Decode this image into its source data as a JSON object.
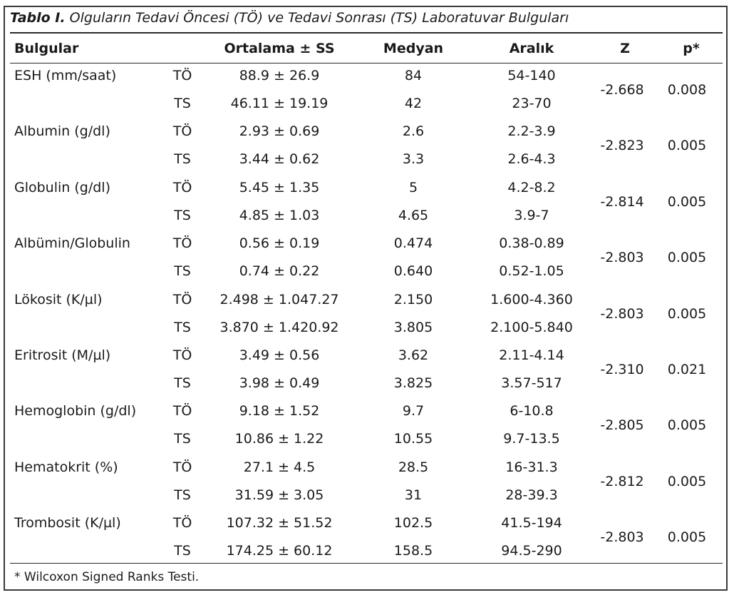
{
  "caption": {
    "lead": "Tablo I.",
    "text": "Olguların Tedavi Öncesi (TÖ) ve Tedavi Sonrası (TS) Laboratuvar Bulguları"
  },
  "headers": {
    "finding": "Bulgular",
    "mean": "Ortalama ± SS",
    "median": "Medyan",
    "range": "Aralık",
    "z": "Z",
    "p": "p*"
  },
  "rows": [
    {
      "name": "ESH (mm/saat)",
      "pre": {
        "label": "TÖ",
        "mean": "88.9 ± 26.9",
        "median": "84",
        "range": "54-140"
      },
      "post": {
        "label": "TS",
        "mean": "46.11 ± 19.19",
        "median": "42",
        "range": "23-70"
      },
      "z": "-2.668",
      "p": "0.008"
    },
    {
      "name": "Albumin (g/dl)",
      "pre": {
        "label": "TÖ",
        "mean": "2.93 ± 0.69",
        "median": "2.6",
        "range": "2.2-3.9"
      },
      "post": {
        "label": "TS",
        "mean": "3.44 ± 0.62",
        "median": "3.3",
        "range": "2.6-4.3"
      },
      "z": "-2.823",
      "p": "0.005"
    },
    {
      "name": "Globulin (g/dl)",
      "pre": {
        "label": "TÖ",
        "mean": "5.45 ± 1.35",
        "median": "5",
        "range": "4.2-8.2"
      },
      "post": {
        "label": "TS",
        "mean": "4.85 ± 1.03",
        "median": "4.65",
        "range": "3.9-7"
      },
      "z": "-2.814",
      "p": "0.005"
    },
    {
      "name": "Albümin/Globulin",
      "pre": {
        "label": "TÖ",
        "mean": "0.56 ± 0.19",
        "median": "0.474",
        "range": "0.38-0.89"
      },
      "post": {
        "label": "TS",
        "mean": "0.74 ± 0.22",
        "median": "0.640",
        "range": "0.52-1.05"
      },
      "z": "-2.803",
      "p": "0.005"
    },
    {
      "name": "Lökosit (K/µl)",
      "pre": {
        "label": "TÖ",
        "mean": "2.498 ± 1.047.27",
        "median": "2.150",
        "range": "1.600-4.360"
      },
      "post": {
        "label": "TS",
        "mean": "3.870 ± 1.420.92",
        "median": "3.805",
        "range": "2.100-5.840"
      },
      "z": "-2.803",
      "p": "0.005"
    },
    {
      "name": "Eritrosit (M/µl)",
      "pre": {
        "label": "TÖ",
        "mean": "3.49 ± 0.56",
        "median": "3.62",
        "range": "2.11-4.14"
      },
      "post": {
        "label": "TS",
        "mean": "3.98 ± 0.49",
        "median": "3.825",
        "range": "3.57-517"
      },
      "z": "-2.310",
      "p": "0.021"
    },
    {
      "name": "Hemoglobin (g/dl)",
      "pre": {
        "label": "TÖ",
        "mean": "9.18 ± 1.52",
        "median": "9.7",
        "range": "6-10.8"
      },
      "post": {
        "label": "TS",
        "mean": "10.86 ± 1.22",
        "median": "10.55",
        "range": "9.7-13.5"
      },
      "z": "-2.805",
      "p": "0.005"
    },
    {
      "name": "Hematokrit (%)",
      "pre": {
        "label": "TÖ",
        "mean": "27.1 ± 4.5",
        "median": "28.5",
        "range": "16-31.3"
      },
      "post": {
        "label": "TS",
        "mean": "31.59 ± 3.05",
        "median": "31",
        "range": "28-39.3"
      },
      "z": "-2.812",
      "p": "0.005"
    },
    {
      "name": "Trombosit (K/µl)",
      "pre": {
        "label": "TÖ",
        "mean": "107.32 ± 51.52",
        "median": "102.5",
        "range": "41.5-194"
      },
      "post": {
        "label": "TS",
        "mean": "174.25 ± 60.12",
        "median": "158.5",
        "range": "94.5-290"
      },
      "z": "-2.803",
      "p": "0.005"
    }
  ],
  "footnote": "* Wilcoxon Signed Ranks Testi."
}
